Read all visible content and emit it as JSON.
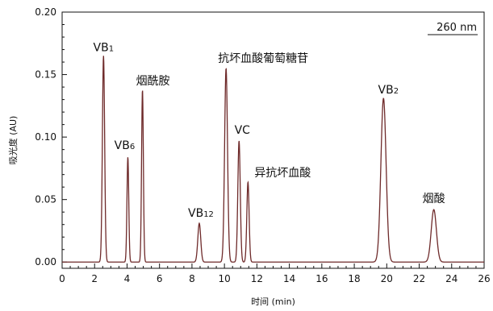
{
  "chart_data": {
    "type": "line",
    "xlabel": "时间 (min)",
    "ylabel": "吸光度 (AU)",
    "xlim": [
      0,
      26
    ],
    "ylim": [
      -0.005,
      0.2
    ],
    "x_ticks": [
      "0",
      "2",
      "4",
      "6",
      "8",
      "10",
      "12",
      "14",
      "16",
      "18",
      "20",
      "22",
      "24",
      "26"
    ],
    "y_ticks": [
      "0.00",
      "0.05",
      "0.10",
      "0.15",
      "0.20"
    ],
    "annotation": "260 nm",
    "line_color": "#6e2a2a",
    "grid": false,
    "peaks": [
      {
        "label": "VB",
        "sub": "1",
        "rt": 2.55,
        "height": 0.165,
        "width": 0.07
      },
      {
        "label": "VB",
        "sub": "6",
        "rt": 4.05,
        "height": 0.084,
        "width": 0.055
      },
      {
        "label": "烟酰胺",
        "sub": "",
        "rt": 4.95,
        "height": 0.138,
        "width": 0.055
      },
      {
        "label": "VB",
        "sub": "12",
        "rt": 8.45,
        "height": 0.031,
        "width": 0.09
      },
      {
        "label": "抗坏血酸葡萄糖苷",
        "sub": "",
        "rt": 10.1,
        "height": 0.155,
        "width": 0.09
      },
      {
        "label": "VC",
        "sub": "",
        "rt": 10.9,
        "height": 0.097,
        "width": 0.075
      },
      {
        "label": "异抗坏血酸",
        "sub": "",
        "rt": 11.45,
        "height": 0.064,
        "width": 0.07
      },
      {
        "label": "VB",
        "sub": "2",
        "rt": 19.8,
        "height": 0.131,
        "width": 0.16
      },
      {
        "label": "烟酸",
        "sub": "",
        "rt": 22.9,
        "height": 0.042,
        "width": 0.16
      }
    ]
  }
}
